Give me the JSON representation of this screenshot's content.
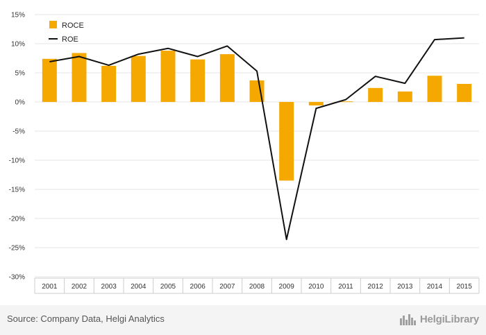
{
  "chart_data": {
    "type": "bar",
    "categories": [
      "2001",
      "2002",
      "2003",
      "2004",
      "2005",
      "2006",
      "2007",
      "2008",
      "2009",
      "2010",
      "2011",
      "2012",
      "2013",
      "2014",
      "2015"
    ],
    "series": [
      {
        "name": "ROCE",
        "type": "bar",
        "color": "#f5a800",
        "values": [
          7.4,
          8.4,
          6.2,
          7.9,
          8.8,
          7.3,
          8.2,
          3.7,
          -13.5,
          -0.6,
          0.1,
          2.4,
          1.8,
          4.5,
          3.1
        ]
      },
      {
        "name": "ROE",
        "type": "line",
        "color": "#111111",
        "values": [
          6.9,
          7.8,
          6.3,
          8.2,
          9.2,
          7.8,
          9.6,
          5.3,
          -23.6,
          -1.1,
          0.4,
          4.4,
          3.2,
          10.7,
          11.0
        ]
      }
    ],
    "yticks": [
      "15%",
      "10%",
      "5%",
      "0%",
      "-5%",
      "-10%",
      "-15%",
      "-20%",
      "-25%",
      "-30%"
    ],
    "ylim": [
      -30,
      15
    ],
    "grid": true,
    "legend_position": "top-left"
  },
  "footer": {
    "source": "Source: Company Data, Helgi Analytics",
    "brand": "HelgiLibrary"
  },
  "colors": {
    "bar": "#f5a800",
    "line": "#111111",
    "grid": "#e6e6e6"
  },
  "icons": {
    "brand_logo": "city-skyline-icon"
  }
}
